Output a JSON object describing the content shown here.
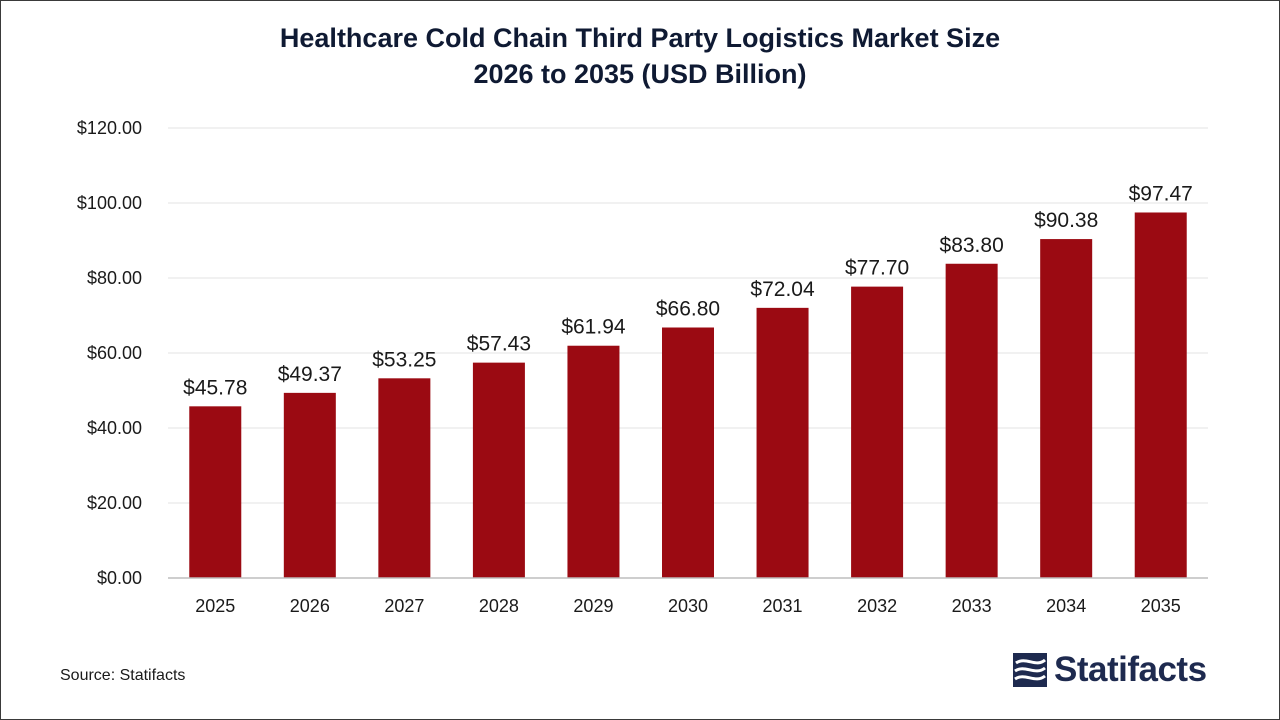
{
  "chart_data": {
    "type": "bar",
    "title_line1": "Healthcare Cold Chain Third Party Logistics Market Size",
    "title_line2": "2026 to 2035 (USD Billion)",
    "categories": [
      "2025",
      "2026",
      "2027",
      "2028",
      "2029",
      "2030",
      "2031",
      "2032",
      "2033",
      "2034",
      "2035"
    ],
    "values": [
      45.78,
      49.37,
      53.25,
      57.43,
      61.94,
      66.8,
      72.04,
      77.7,
      83.8,
      90.38,
      97.47
    ],
    "value_labels": [
      "$45.78",
      "$49.37",
      "$53.25",
      "$57.43",
      "$61.94",
      "$66.80",
      "$72.04",
      "$77.70",
      "$83.80",
      "$90.38",
      "$97.47"
    ],
    "y_ticks": [
      0,
      20,
      40,
      60,
      80,
      100,
      120
    ],
    "y_tick_labels": [
      "$0.00",
      "$20.00",
      "$40.00",
      "$60.00",
      "$80.00",
      "$100.00",
      "$120.00"
    ],
    "ylim": [
      0,
      120
    ],
    "grid": true,
    "bar_color": "#9b0a12",
    "xlabel": "",
    "ylabel": ""
  },
  "footer": {
    "source": "Source: Statifacts",
    "logo_text": "Statifacts"
  },
  "colors": {
    "title": "#0f1a33",
    "logo": "#1e2a4f"
  }
}
